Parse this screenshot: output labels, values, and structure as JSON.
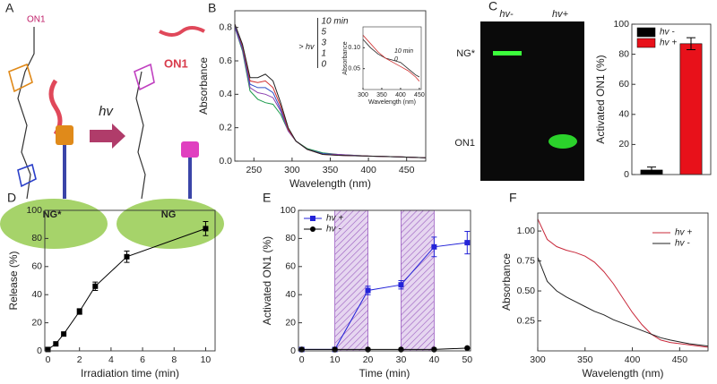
{
  "schematic": {
    "panel": "A",
    "top_label": "ON1",
    "arrow_label": "hv",
    "left_base": "NG*",
    "right_base": "NG",
    "released": "ON1"
  },
  "gel": {
    "lanes": [
      "hv-",
      "hv+"
    ],
    "bands": [
      "NG*",
      "ON1"
    ]
  },
  "chart_data": [
    {
      "type": "line",
      "panel": "B",
      "xlabel": "Wavelength (nm)",
      "ylabel": "Absorbance",
      "annotation": "> hv",
      "x": [
        225,
        235,
        245,
        255,
        265,
        275,
        285,
        295,
        305,
        320,
        340,
        360,
        400,
        440,
        475
      ],
      "series": [
        {
          "name": "10 min",
          "color": "#1a9a4a",
          "values": [
            0.8,
            0.66,
            0.42,
            0.37,
            0.35,
            0.34,
            0.28,
            0.18,
            0.12,
            0.075,
            0.05,
            0.04,
            0.03,
            0.025,
            0.02
          ]
        },
        {
          "name": "5",
          "color": "#8a3fb0",
          "values": [
            0.8,
            0.67,
            0.44,
            0.41,
            0.4,
            0.38,
            0.3,
            0.18,
            0.12,
            0.07,
            0.045,
            0.04,
            0.03,
            0.025,
            0.02
          ]
        },
        {
          "name": "3",
          "color": "#3050c8",
          "values": [
            0.81,
            0.68,
            0.46,
            0.44,
            0.44,
            0.41,
            0.31,
            0.19,
            0.12,
            0.07,
            0.045,
            0.035,
            0.03,
            0.025,
            0.02
          ]
        },
        {
          "name": "1",
          "color": "#d03030",
          "values": [
            0.82,
            0.69,
            0.48,
            0.47,
            0.48,
            0.44,
            0.33,
            0.19,
            0.12,
            0.07,
            0.04,
            0.035,
            0.03,
            0.025,
            0.02
          ]
        },
        {
          "name": "0",
          "color": "#222222",
          "values": [
            0.82,
            0.7,
            0.5,
            0.5,
            0.52,
            0.48,
            0.35,
            0.2,
            0.12,
            0.07,
            0.04,
            0.035,
            0.03,
            0.025,
            0.02
          ]
        }
      ],
      "xlim": [
        225,
        475
      ],
      "xticks": [
        250,
        300,
        350,
        400,
        450
      ],
      "ylim": [
        0,
        0.9
      ],
      "yticks": [
        {
          "value": 0,
          "label": "0.0"
        },
        0.2,
        0.4,
        0.6,
        0.8
      ],
      "legend": "upper center",
      "legend_swatch": false
    },
    {
      "type": "line",
      "xlabel": "Wavelength (nm)",
      "ylabel": "Absorbance",
      "x": [
        300,
        320,
        340,
        360,
        380,
        400,
        420,
        440,
        450
      ],
      "series": [
        {
          "name": "10 min",
          "color": "#222222",
          "values": [
            0.12,
            0.1,
            0.085,
            0.075,
            0.07,
            0.065,
            0.05,
            0.035,
            0.03
          ]
        },
        {
          "name": "0",
          "color": "#d03030",
          "values": [
            0.13,
            0.11,
            0.09,
            0.075,
            0.065,
            0.055,
            0.045,
            0.03,
            0.02
          ]
        }
      ],
      "xlim": [
        300,
        455
      ],
      "xticks": [
        300,
        350,
        400,
        450
      ],
      "ylim": [
        0,
        0.15
      ],
      "yticks": [
        0.05,
        {
          "value": 0.1,
          "label": "0.10"
        }
      ],
      "legend": "center right",
      "legend_swatch": false
    },
    {
      "type": "bar",
      "panel": "C",
      "ylabel": "Activated ON1 (%)",
      "series": [
        {
          "name": "hv -",
          "color": "#000000",
          "values": [
            3
          ],
          "errors": [
            2
          ]
        },
        {
          "name": "hv +",
          "color": "#e8111a",
          "values": [
            87
          ],
          "errors": [
            4
          ]
        }
      ],
      "ylim": [
        0,
        100
      ],
      "yticks": [
        0,
        20,
        40,
        60,
        80,
        100
      ],
      "legend": "upper left"
    },
    {
      "type": "line",
      "panel": "D",
      "xlabel": "Irradiation time (min)",
      "ylabel": "Release (%)",
      "x": [
        0,
        0.5,
        1,
        2,
        3,
        5,
        10
      ],
      "series": [
        {
          "name": "Release",
          "color": "#000000",
          "marker": "square",
          "values": [
            1,
            5,
            12,
            28,
            46,
            67,
            87
          ],
          "errors": [
            0,
            0,
            0,
            2,
            3,
            4,
            5
          ]
        }
      ],
      "xlim": [
        -0.2,
        10.6
      ],
      "xticks": [
        0,
        2,
        4,
        6,
        8,
        10
      ],
      "ylim": [
        0,
        100
      ],
      "yticks": [
        0,
        20,
        40,
        60,
        80,
        100
      ]
    },
    {
      "type": "line",
      "panel": "E",
      "xlabel": "Time (min)",
      "ylabel": "Activated ON1 (%)",
      "x": [
        0,
        10,
        20,
        30,
        40,
        50
      ],
      "shaded": [
        [
          10,
          20
        ],
        [
          30,
          40
        ]
      ],
      "series": [
        {
          "name": "hv +",
          "color": "#2323d8",
          "marker": "square",
          "values": [
            1,
            1,
            43,
            47,
            74,
            77
          ],
          "errors": [
            0,
            0,
            3,
            3,
            7,
            8
          ]
        },
        {
          "name": "hv -",
          "color": "#000000",
          "marker": "circle",
          "values": [
            1,
            1,
            1,
            1,
            1,
            2
          ]
        }
      ],
      "xlim": [
        -1,
        51
      ],
      "xticks": [
        0,
        10,
        20,
        30,
        40,
        50
      ],
      "ylim": [
        0,
        100
      ],
      "yticks": [
        0,
        20,
        40,
        60,
        80,
        100
      ],
      "legend": "upper left"
    },
    {
      "type": "line",
      "panel": "F",
      "xlabel": "Wavelength (nm)",
      "ylabel": "Absorbance",
      "x": [
        300,
        310,
        320,
        330,
        340,
        350,
        360,
        370,
        380,
        390,
        400,
        410,
        420,
        430,
        440,
        460,
        480
      ],
      "series": [
        {
          "name": "hv +",
          "color": "#c8283a",
          "values": [
            1.1,
            0.93,
            0.87,
            0.84,
            0.82,
            0.79,
            0.74,
            0.66,
            0.56,
            0.44,
            0.32,
            0.22,
            0.14,
            0.09,
            0.07,
            0.05,
            0.03
          ]
        },
        {
          "name": "hv -",
          "color": "#222222",
          "values": [
            0.78,
            0.58,
            0.5,
            0.45,
            0.41,
            0.37,
            0.33,
            0.3,
            0.26,
            0.23,
            0.2,
            0.17,
            0.14,
            0.11,
            0.09,
            0.06,
            0.04
          ]
        }
      ],
      "xlim": [
        300,
        480
      ],
      "xticks": [
        300,
        350,
        400,
        450
      ],
      "ylim": [
        0,
        1.15
      ],
      "yticks": [
        0.25,
        {
          "value": 0.5,
          "label": "0.50"
        },
        0.75,
        {
          "value": 1,
          "label": "1.00"
        }
      ],
      "legend": "upper right"
    }
  ]
}
